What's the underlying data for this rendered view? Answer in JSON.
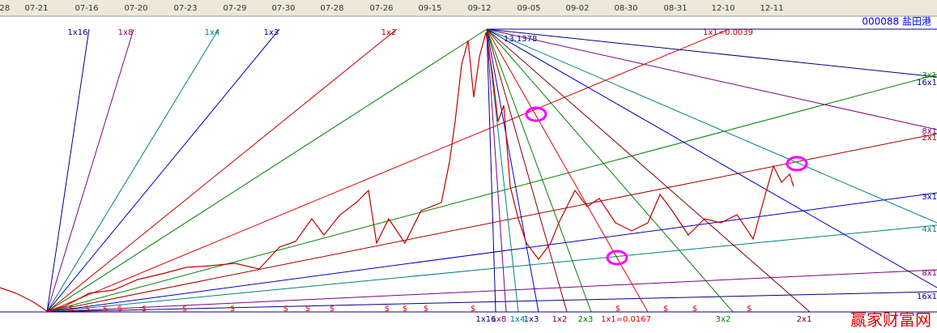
{
  "header": {
    "dates": [
      "-28",
      "07-21",
      "07-16",
      "07-20",
      "07-23",
      "07-29",
      "07-30",
      "07-28",
      "07-26",
      "09-15",
      "09-12",
      "09-05",
      "09-02",
      "08-30",
      "08-31",
      "12-10",
      "12-11"
    ],
    "symbol": "000088 盐田港"
  },
  "chart": {
    "peak_label": "13.1378",
    "rising_fan_labels": [
      "1x16",
      "1x8",
      "1x4",
      "1x3",
      "1x2"
    ],
    "rate_label_top": "1x1=0.0039",
    "falling_fan_labels": [
      "1x16",
      "1x8",
      "1x4",
      "1x3",
      "1x2",
      "2x3",
      "1x1=0.0167",
      "3x2",
      "2x1"
    ],
    "right_labels": [
      "3x1",
      "16x1",
      "8x1",
      "2x1",
      "3x1",
      "4x1",
      "8x1",
      "16x1"
    ],
    "markers": [
      "$",
      "$",
      "$",
      "$",
      "$",
      "$",
      "$",
      "$",
      "$",
      "$",
      "$",
      "$",
      "$",
      "$",
      "$",
      "$",
      "$",
      "$"
    ]
  },
  "watermark": "赢家财富网"
}
